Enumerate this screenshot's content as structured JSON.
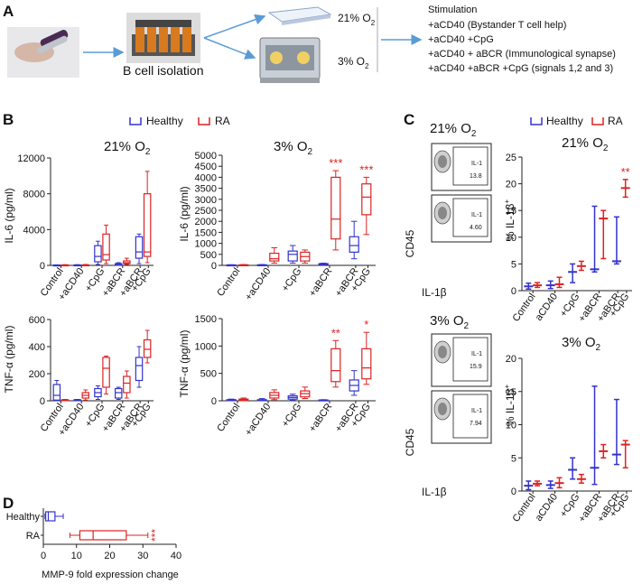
{
  "colors": {
    "healthy": "#3333cc",
    "ra": "#dd2222",
    "arrow": "#5b9bd5",
    "sig": "#dd2222"
  },
  "panel_a": {
    "letter": "A",
    "isolation_label": "B cell isolation",
    "o2_21": "21% O",
    "o2_3": "3% O",
    "o2_sub": "2",
    "stimulation_title": "Stimulation",
    "stimulations": [
      "+aCD40 (Bystander T cell help)",
      "+aCD40 +CpG",
      "+aCD40 + aBCR (Immunological synapse)",
      "+aCD40 +aBCR +CpG (signals 1,2 and 3)"
    ]
  },
  "panel_b": {
    "letter": "B",
    "legend": {
      "healthy": "Healthy",
      "ra": "RA"
    },
    "col_titles": [
      "21% O",
      "3% O"
    ],
    "col_title_sub": "2",
    "il6_ylabel": "IL-6 (pg/ml)",
    "tnf_ylabel": "TNF-α (pg/ml)",
    "categories": [
      "Control",
      "+aCD40",
      "+CpG",
      "+aBCR",
      "+aBCR",
      "+CpG"
    ]
  },
  "panel_c": {
    "letter": "C",
    "legend": {
      "healthy": "Healthy",
      "ra": "RA"
    },
    "flow_titles": [
      "21% O",
      "3% O"
    ],
    "flow_title_sub": "2",
    "flow_ylabel": "CD45",
    "flow_xlabel": "IL-1β",
    "gate_label": "IL-1",
    "gate_values": [
      "13.8",
      "4.60",
      "15.9",
      "7.94"
    ],
    "ylabel": "% IL-1β",
    "ylabel_sup": "+",
    "categories": [
      "Control",
      "aCD40",
      "+CpG",
      "+aBCR",
      "+aBCR",
      "+CpG"
    ]
  },
  "panel_d": {
    "letter": "D",
    "sig": "***"
  },
  "chart_data": [
    {
      "id": "B-IL6-21",
      "type": "box",
      "title": "21% O2",
      "ylabel": "IL-6 (pg/ml)",
      "ylim": [
        0,
        12000
      ],
      "yticks": [
        0,
        4000,
        8000,
        12000
      ],
      "groups": [
        {
          "healthy": [
            0,
            0,
            20,
            40,
            60
          ],
          "ra": [
            0,
            10,
            30,
            50,
            80
          ]
        },
        {
          "healthy": [
            0,
            10,
            30,
            50,
            80
          ],
          "ra": [
            0,
            20,
            40,
            60,
            100
          ]
        },
        {
          "healthy": [
            100,
            400,
            1000,
            2200,
            2700
          ],
          "ra": [
            200,
            600,
            1200,
            3500,
            4500
          ]
        },
        {
          "healthy": [
            0,
            40,
            80,
            200,
            300
          ],
          "ra": [
            100,
            200,
            300,
            500,
            800
          ]
        },
        {
          "healthy": [
            200,
            800,
            1500,
            3200,
            3500
          ],
          "ra": [
            300,
            1000,
            1500,
            8000,
            10500
          ]
        }
      ],
      "sig": [
        "",
        "",
        "",
        "",
        ""
      ]
    },
    {
      "id": "B-IL6-3",
      "type": "box",
      "title": "3% O2",
      "ylabel": "IL-6 (pg/ml)",
      "ylim": [
        0,
        5000
      ],
      "yticks": [
        0,
        500,
        1000,
        1500,
        2000,
        2500,
        3000,
        3500,
        4000,
        4500,
        5000
      ],
      "groups": [
        {
          "healthy": [
            0,
            5,
            10,
            20,
            30
          ],
          "ra": [
            0,
            5,
            15,
            25,
            40
          ]
        },
        {
          "healthy": [
            0,
            5,
            15,
            25,
            40
          ],
          "ra": [
            100,
            200,
            300,
            550,
            800
          ]
        },
        {
          "healthy": [
            100,
            200,
            500,
            650,
            900
          ],
          "ra": [
            100,
            200,
            400,
            600,
            700
          ]
        },
        {
          "healthy": [
            20,
            40,
            60,
            80,
            100
          ],
          "ra": [
            700,
            1200,
            2100,
            4000,
            4300
          ]
        },
        {
          "healthy": [
            300,
            600,
            900,
            1300,
            2000
          ],
          "ra": [
            1400,
            2300,
            3100,
            3700,
            4000
          ]
        }
      ],
      "sig": [
        "",
        "",
        "",
        "***",
        "***"
      ]
    },
    {
      "id": "B-TNF-21",
      "type": "box",
      "title": "21% O2",
      "ylabel": "TNF-α (pg/ml)",
      "ylim": [
        0,
        600
      ],
      "yticks": [
        0,
        200,
        400,
        600
      ],
      "groups": [
        {
          "healthy": [
            0,
            5,
            40,
            120,
            150
          ],
          "ra": [
            0,
            2,
            5,
            8,
            10
          ]
        },
        {
          "healthy": [
            0,
            2,
            5,
            8,
            10
          ],
          "ra": [
            5,
            20,
            40,
            60,
            80
          ]
        },
        {
          "healthy": [
            10,
            30,
            60,
            90,
            110
          ],
          "ra": [
            50,
            100,
            240,
            320,
            330
          ]
        },
        {
          "healthy": [
            10,
            20,
            60,
            90,
            100
          ],
          "ra": [
            20,
            60,
            130,
            180,
            220
          ]
        },
        {
          "healthy": [
            100,
            150,
            260,
            320,
            400
          ],
          "ra": [
            280,
            320,
            380,
            450,
            520
          ]
        }
      ],
      "sig": [
        "",
        "",
        "",
        "",
        ""
      ]
    },
    {
      "id": "B-TNF-3",
      "type": "box",
      "title": "3% O2",
      "ylabel": "TNF-α (pg/ml)",
      "ylim": [
        0,
        1500
      ],
      "yticks": [
        0,
        500,
        1000,
        1500
      ],
      "groups": [
        {
          "healthy": [
            0,
            5,
            10,
            20,
            30
          ],
          "ra": [
            0,
            5,
            20,
            30,
            50
          ]
        },
        {
          "healthy": [
            0,
            5,
            10,
            20,
            40
          ],
          "ra": [
            20,
            50,
            100,
            150,
            200
          ]
        },
        {
          "healthy": [
            10,
            30,
            60,
            90,
            120
          ],
          "ra": [
            40,
            70,
            130,
            180,
            250
          ]
        },
        {
          "healthy": [
            0,
            5,
            10,
            15,
            20
          ],
          "ra": [
            250,
            350,
            550,
            950,
            1100
          ]
        },
        {
          "healthy": [
            100,
            180,
            280,
            380,
            550
          ],
          "ra": [
            300,
            400,
            600,
            950,
            1250
          ]
        }
      ],
      "sig": [
        "",
        "",
        "",
        "**",
        "*"
      ]
    },
    {
      "id": "C-21",
      "type": "range",
      "title": "21% O2",
      "ylabel": "% IL-1β+",
      "ylim": [
        0,
        25
      ],
      "yticks": [
        0,
        5,
        10,
        15,
        20,
        25
      ],
      "groups": [
        {
          "healthy": [
            0.3,
            0.8,
            1.4
          ],
          "ra": [
            0.6,
            1.0,
            1.5
          ]
        },
        {
          "healthy": [
            0.4,
            1.0,
            1.8
          ],
          "ra": [
            0.6,
            1.2,
            2.5
          ]
        },
        {
          "healthy": [
            1.5,
            3.5,
            5.0
          ],
          "ra": [
            3.8,
            4.6,
            5.5
          ]
        },
        {
          "healthy": [
            3.5,
            4.0,
            15.8
          ],
          "ra": [
            6.0,
            13.5,
            15.0
          ]
        },
        {
          "healthy": [
            5.0,
            5.5,
            13.8
          ],
          "ra": [
            17.5,
            19.2,
            20.8
          ]
        }
      ],
      "sig": [
        "",
        "",
        "",
        "",
        "**"
      ]
    },
    {
      "id": "C-3",
      "type": "range",
      "title": "3% O2",
      "ylabel": "% IL-1β+",
      "ylim": [
        0,
        20
      ],
      "yticks": [
        0,
        5,
        10,
        15,
        20
      ],
      "groups": [
        {
          "healthy": [
            0.2,
            0.8,
            1.5
          ],
          "ra": [
            0.8,
            1.1,
            1.5
          ]
        },
        {
          "healthy": [
            0.4,
            0.9,
            1.5
          ],
          "ra": [
            0.5,
            1.2,
            2.0
          ]
        },
        {
          "healthy": [
            1.8,
            3.2,
            5.0
          ],
          "ra": [
            1.2,
            1.8,
            2.5
          ]
        },
        {
          "healthy": [
            1.0,
            3.5,
            15.8
          ],
          "ra": [
            5.0,
            6.0,
            7.0
          ]
        },
        {
          "healthy": [
            4.0,
            5.5,
            13.8
          ],
          "ra": [
            3.5,
            7.0,
            7.6
          ]
        }
      ],
      "sig": [
        "",
        "",
        "",
        "",
        ""
      ]
    },
    {
      "id": "D",
      "type": "box-horizontal",
      "xlabel": "MMP-9 fold expression change",
      "xlim": [
        0,
        40
      ],
      "xticks": [
        0,
        10,
        20,
        30,
        40
      ],
      "categories": [
        "Healthy",
        "RA"
      ],
      "healthy": [
        0.5,
        0.7,
        1.5,
        3.5,
        6.0
      ],
      "ra": [
        8.0,
        11.0,
        15.0,
        25.0,
        31.5
      ],
      "sig": "***"
    }
  ]
}
